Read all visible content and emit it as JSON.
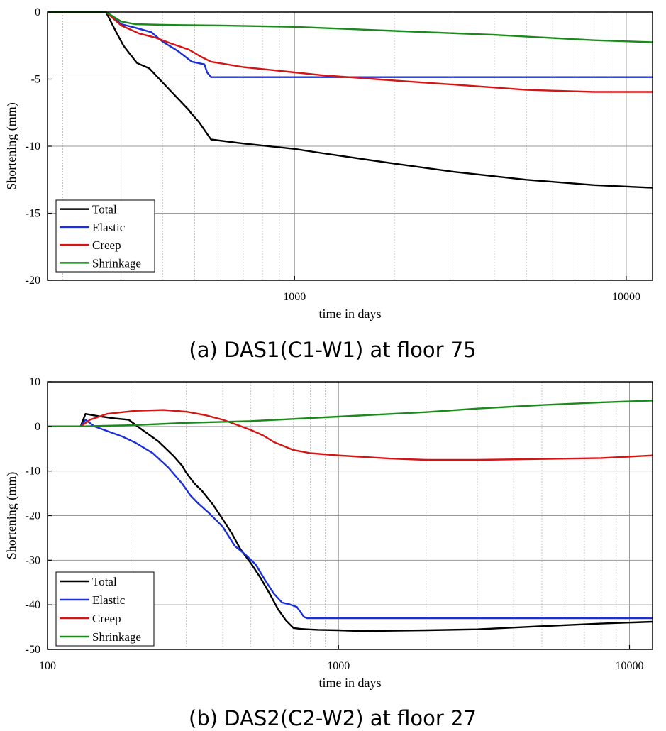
{
  "chart_data": [
    {
      "type": "line",
      "caption": "(a) DAS1(C1-W1) at floor 75",
      "xlabel": "time in days",
      "ylabel": "Shortening (mm)",
      "xscale": "log",
      "xlim": [
        180,
        12000
      ],
      "ylim": [
        -20,
        0
      ],
      "x_ticks": [
        1000,
        10000
      ],
      "y_ticks": [
        0,
        -5,
        -10,
        -15,
        -20
      ],
      "grid": true,
      "legend_position": "bottom-left",
      "series": [
        {
          "name": "Total",
          "color": "#000000",
          "x": [
            180,
            270,
            290,
            305,
            330,
            335,
            365,
            420,
            480,
            490,
            515,
            560,
            700,
            1000,
            1200,
            2000,
            3000,
            5000,
            8000,
            12000
          ],
          "y": [
            0,
            0,
            -1.5,
            -2.5,
            -3.6,
            -3.8,
            -4.2,
            -5.8,
            -7.3,
            -7.6,
            -8.2,
            -9.5,
            -9.8,
            -10.2,
            -10.5,
            -11.3,
            -11.9,
            -12.5,
            -12.9,
            -13.1
          ]
        },
        {
          "name": "Elastic",
          "color": "#1a2fd6",
          "x": [
            180,
            270,
            300,
            335,
            370,
            400,
            445,
            490,
            535,
            545,
            560,
            1000,
            5000,
            12000
          ],
          "y": [
            0,
            0,
            -0.9,
            -1.2,
            -1.5,
            -2.2,
            -2.9,
            -3.7,
            -3.9,
            -4.5,
            -4.85,
            -4.85,
            -4.85,
            -4.85
          ],
          "smooth": false
        },
        {
          "name": "Creep",
          "color": "#d51414",
          "x": [
            180,
            270,
            300,
            340,
            380,
            420,
            480,
            520,
            560,
            700,
            1000,
            1200,
            2000,
            3000,
            5000,
            8000,
            12000
          ],
          "y": [
            0,
            0,
            -1.0,
            -1.6,
            -1.9,
            -2.3,
            -2.8,
            -3.3,
            -3.7,
            -4.1,
            -4.5,
            -4.7,
            -5.1,
            -5.4,
            -5.8,
            -5.95,
            -5.95
          ]
        },
        {
          "name": "Shrinkage",
          "color": "#1a8a1a",
          "x": [
            180,
            270,
            300,
            330,
            400,
            600,
            1000,
            2000,
            4000,
            8000,
            12000
          ],
          "y": [
            0,
            0,
            -0.7,
            -0.9,
            -0.95,
            -1.0,
            -1.1,
            -1.4,
            -1.7,
            -2.1,
            -2.25
          ]
        }
      ]
    },
    {
      "type": "line",
      "caption": "(b) DAS2(C2-W2) at floor 27",
      "xlabel": "time in days",
      "ylabel": "Shortening (mm)",
      "xscale": "log",
      "xlim": [
        100,
        12000
      ],
      "ylim": [
        -50,
        10
      ],
      "x_ticks": [
        100,
        1000,
        10000
      ],
      "y_ticks": [
        10,
        0,
        -10,
        -20,
        -30,
        -40,
        -50
      ],
      "grid": true,
      "legend_position": "bottom-left",
      "series": [
        {
          "name": "Total",
          "color": "#000000",
          "x": [
            100,
            130,
            135,
            150,
            170,
            190,
            210,
            240,
            270,
            290,
            300,
            320,
            340,
            370,
            400,
            430,
            460,
            500,
            540,
            580,
            620,
            660,
            700,
            740,
            780,
            850,
            1000,
            1200,
            2000,
            3000,
            5000,
            8000,
            12000
          ],
          "y": [
            0,
            0,
            2.8,
            2.3,
            1.8,
            1.5,
            -0.6,
            -3.3,
            -6.5,
            -8.8,
            -10.4,
            -12.8,
            -14.5,
            -17.5,
            -20.8,
            -24.0,
            -27.5,
            -30.7,
            -34.0,
            -37.5,
            -41.0,
            -43.5,
            -45.2,
            -45.4,
            -45.5,
            -45.6,
            -45.7,
            -45.9,
            -45.7,
            -45.5,
            -44.8,
            -44.2,
            -43.8
          ]
        },
        {
          "name": "Elastic",
          "color": "#1a2fd6",
          "x": [
            100,
            130,
            135,
            145,
            160,
            180,
            200,
            230,
            260,
            290,
            310,
            330,
            360,
            400,
            440,
            480,
            520,
            560,
            600,
            640,
            680,
            720,
            760,
            780,
            790,
            1000,
            3000,
            12000
          ],
          "y": [
            0,
            0,
            1.5,
            0,
            -1.0,
            -2.2,
            -3.6,
            -6.0,
            -9.2,
            -12.8,
            -15.5,
            -17.3,
            -19.5,
            -22.5,
            -26.8,
            -28.8,
            -31.0,
            -34.5,
            -37.5,
            -39.5,
            -39.9,
            -40.5,
            -42.7,
            -43.0,
            -43.0,
            -43.0,
            -43.0,
            -43.0
          ]
        },
        {
          "name": "Creep",
          "color": "#d51414",
          "x": [
            100,
            130,
            140,
            160,
            200,
            250,
            300,
            350,
            400,
            450,
            500,
            550,
            600,
            700,
            800,
            1000,
            1500,
            2000,
            3000,
            5000,
            8000,
            12000
          ],
          "y": [
            0,
            0,
            1.5,
            2.8,
            3.5,
            3.7,
            3.3,
            2.5,
            1.5,
            0.3,
            -0.8,
            -2.0,
            -3.5,
            -5.3,
            -6.0,
            -6.5,
            -7.2,
            -7.5,
            -7.5,
            -7.3,
            -7.1,
            -6.5
          ]
        },
        {
          "name": "Shrinkage",
          "color": "#1a8a1a",
          "x": [
            100,
            130,
            200,
            300,
            500,
            1000,
            2000,
            3000,
            5000,
            8000,
            12000
          ],
          "y": [
            0,
            0,
            0.3,
            0.8,
            1.2,
            2.2,
            3.2,
            4.0,
            4.8,
            5.4,
            5.8
          ]
        }
      ]
    }
  ]
}
